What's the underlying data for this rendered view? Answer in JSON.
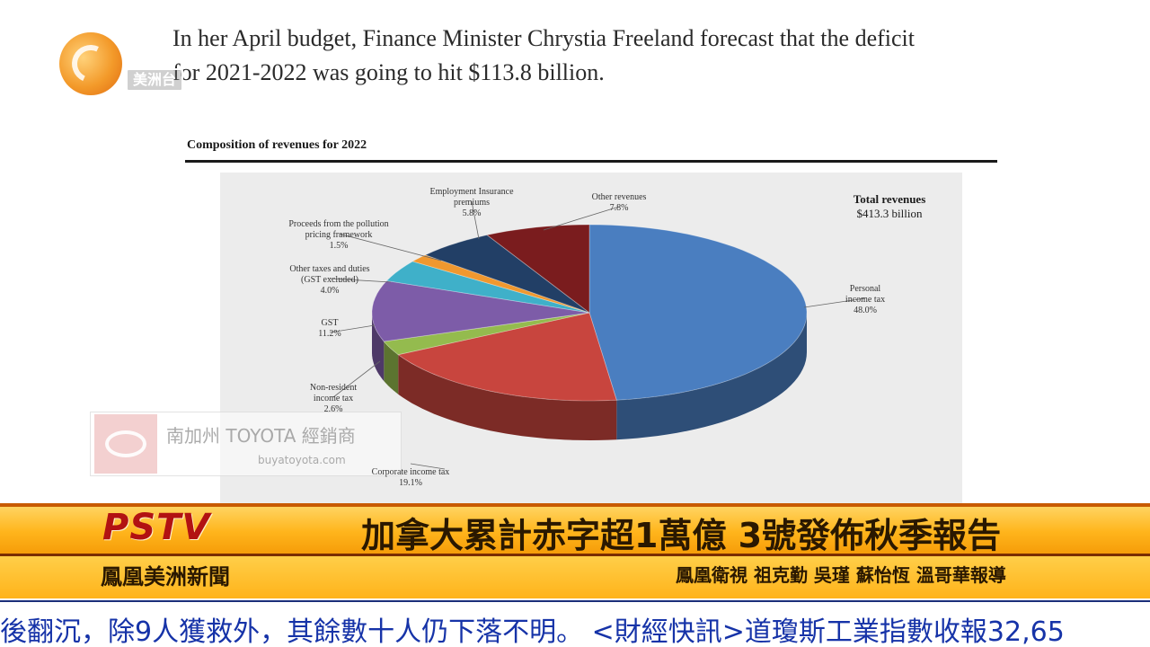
{
  "article": {
    "line1": "In her April budget, Finance Minister Chrystia Freeland forecast that the deficit",
    "line2": "for 2021-2022 was going to hit $113.8 billion."
  },
  "logo": {
    "tag": "美洲台"
  },
  "chart_data": {
    "type": "pie",
    "title": "Composition of revenues for 2022",
    "total_label": "Total revenues",
    "total_value": "$413.3 billion",
    "slices": [
      {
        "name": "Personal income tax",
        "label_lines": [
          "Personal",
          "income tax"
        ],
        "value": 48.0,
        "pct_label": "48.0%",
        "color": "#4a7ec0"
      },
      {
        "name": "Corporate income tax",
        "label_lines": [
          "Corporate income tax"
        ],
        "value": 19.1,
        "pct_label": "19.1%",
        "color": "#c8453e"
      },
      {
        "name": "Non-resident income tax",
        "label_lines": [
          "Non-resident",
          "income tax"
        ],
        "value": 2.6,
        "pct_label": "2.6%",
        "color": "#94bb4e"
      },
      {
        "name": "GST",
        "label_lines": [
          "GST"
        ],
        "value": 11.2,
        "pct_label": "11.2%",
        "color": "#7d5ca8"
      },
      {
        "name": "Other taxes and duties (GST excluded)",
        "label_lines": [
          "Other taxes and duties",
          "(GST excluded)"
        ],
        "value": 4.0,
        "pct_label": "4.0%",
        "color": "#3fb0c9"
      },
      {
        "name": "Proceeds from the pollution pricing framework",
        "label_lines": [
          "Proceeds from the pollution",
          "pricing framework"
        ],
        "value": 1.5,
        "pct_label": "1.5%",
        "color": "#f0982f"
      },
      {
        "name": "Employment Insurance premiums",
        "label_lines": [
          "Employment Insurance",
          "premiums"
        ],
        "value": 5.8,
        "pct_label": "5.8%",
        "color": "#223f66"
      },
      {
        "name": "Other revenues",
        "label_lines": [
          "Other revenues"
        ],
        "value": 7.8,
        "pct_label": "7.8%",
        "color": "#7a1c1e"
      }
    ]
  },
  "watermark": {
    "name": "南加州 TOYOTA 經銷商",
    "url": "buyatoyota.com"
  },
  "broadcast": {
    "brand": "PSTV",
    "headline": "加拿大累計赤字超1萬億 3號發佈秋季報告",
    "program": "鳳凰美洲新聞",
    "credits": "鳳凰衛視 祖克勤 吳瑾 蘇怡恆 溫哥華報導",
    "ticker": "後翻沉，除9人獲救外，其餘數十人仍下落不明。 <財經快訊>道瓊斯工業指數收報32,65"
  }
}
